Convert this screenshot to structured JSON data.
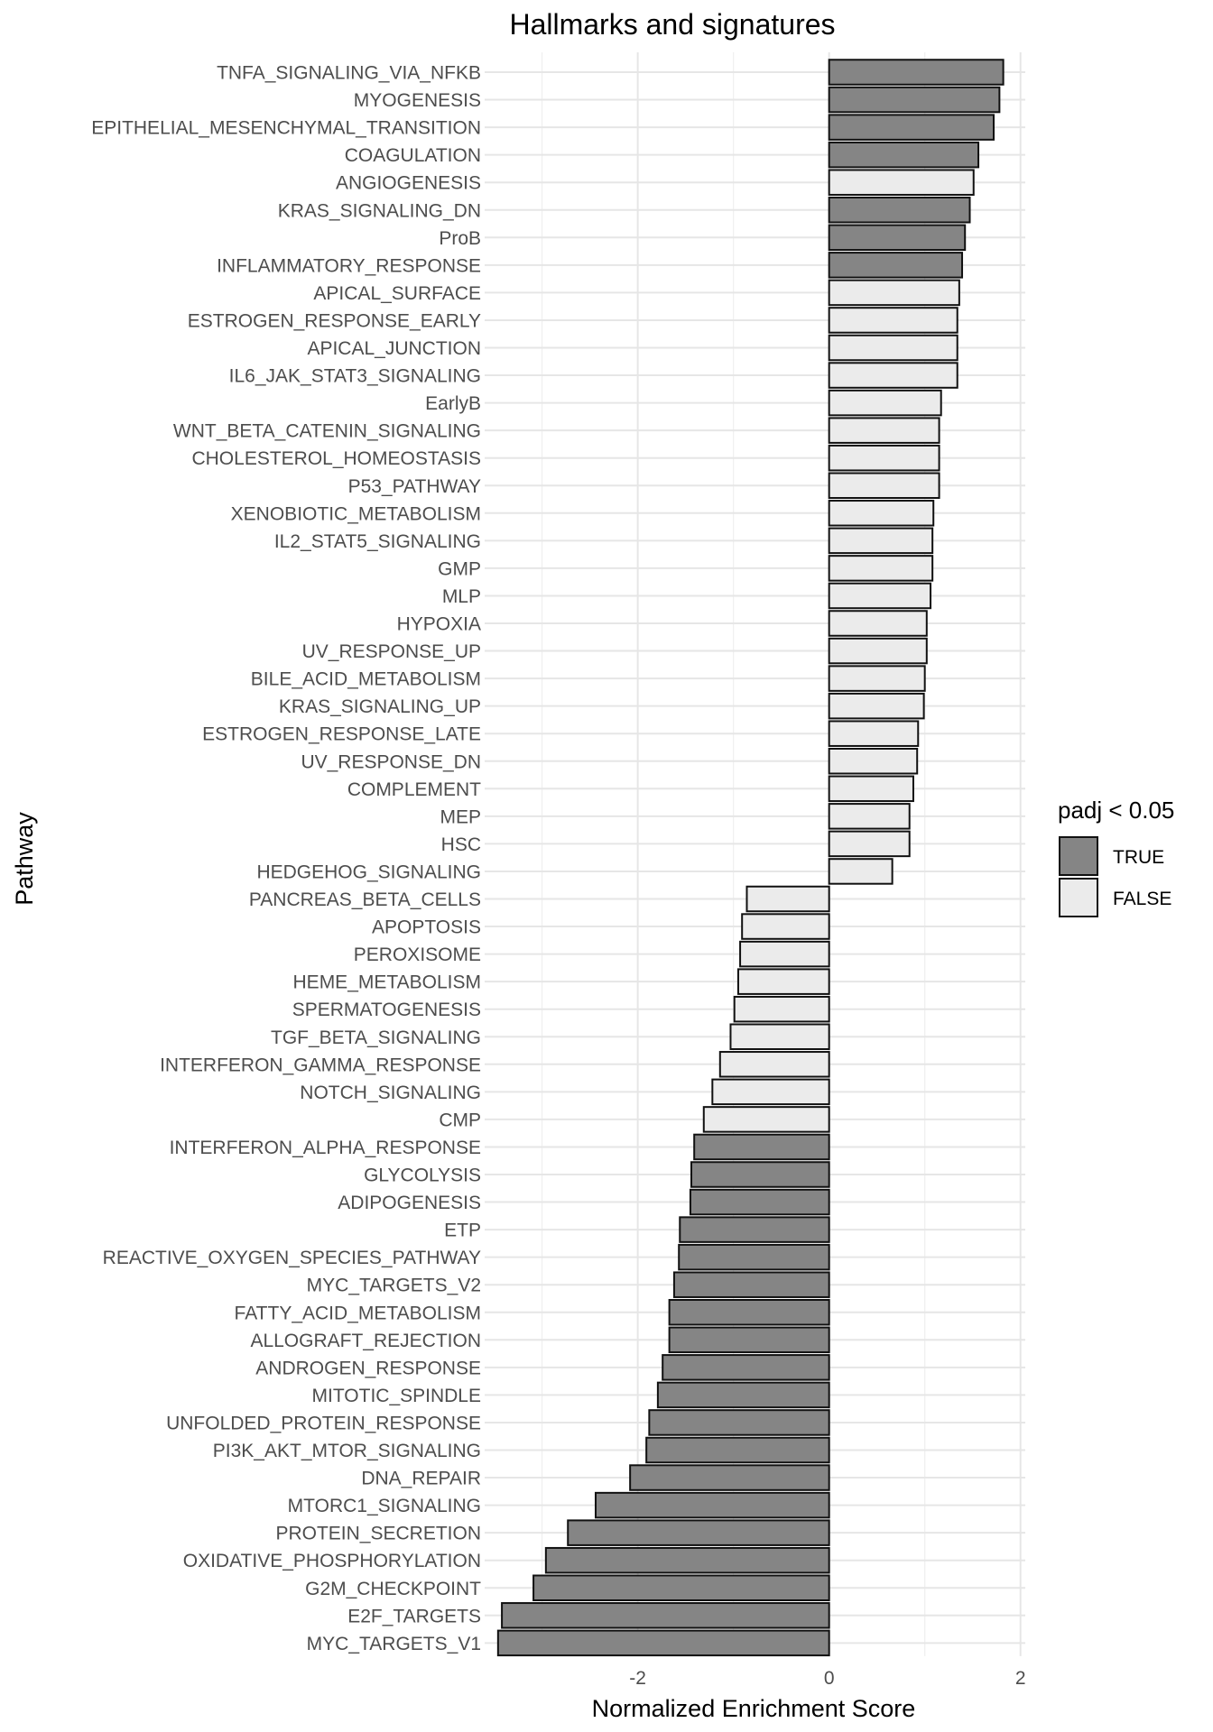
{
  "chart_data": {
    "type": "bar",
    "orientation": "horizontal",
    "title": "Hallmarks and signatures",
    "xlabel": "Normalized Enrichment Score",
    "ylabel": "Pathway",
    "xlim": [
      -3.6,
      2.05
    ],
    "xticks": [
      -2,
      0,
      2
    ],
    "xtick_labels": [
      "-2",
      "0",
      "2"
    ],
    "grid": true,
    "legend": {
      "title": "padj < 0.05",
      "position": "right",
      "entries": [
        {
          "label": "TRUE",
          "color": "#858585"
        },
        {
          "label": "FALSE",
          "color": "#ebebeb"
        }
      ]
    },
    "bars": [
      {
        "pathway": "TNFA_SIGNALING_VIA_NFKB",
        "nes": 1.82,
        "padj_lt_005": "TRUE"
      },
      {
        "pathway": "MYOGENESIS",
        "nes": 1.78,
        "padj_lt_005": "TRUE"
      },
      {
        "pathway": "EPITHELIAL_MESENCHYMAL_TRANSITION",
        "nes": 1.72,
        "padj_lt_005": "TRUE"
      },
      {
        "pathway": "COAGULATION",
        "nes": 1.56,
        "padj_lt_005": "TRUE"
      },
      {
        "pathway": "ANGIOGENESIS",
        "nes": 1.51,
        "padj_lt_005": "FALSE"
      },
      {
        "pathway": "KRAS_SIGNALING_DN",
        "nes": 1.47,
        "padj_lt_005": "TRUE"
      },
      {
        "pathway": "ProB",
        "nes": 1.42,
        "padj_lt_005": "TRUE"
      },
      {
        "pathway": "INFLAMMATORY_RESPONSE",
        "nes": 1.39,
        "padj_lt_005": "TRUE"
      },
      {
        "pathway": "APICAL_SURFACE",
        "nes": 1.36,
        "padj_lt_005": "FALSE"
      },
      {
        "pathway": "ESTROGEN_RESPONSE_EARLY",
        "nes": 1.34,
        "padj_lt_005": "FALSE"
      },
      {
        "pathway": "APICAL_JUNCTION",
        "nes": 1.34,
        "padj_lt_005": "FALSE"
      },
      {
        "pathway": "IL6_JAK_STAT3_SIGNALING",
        "nes": 1.34,
        "padj_lt_005": "FALSE"
      },
      {
        "pathway": "EarlyB",
        "nes": 1.17,
        "padj_lt_005": "FALSE"
      },
      {
        "pathway": "WNT_BETA_CATENIN_SIGNALING",
        "nes": 1.15,
        "padj_lt_005": "FALSE"
      },
      {
        "pathway": "CHOLESTEROL_HOMEOSTASIS",
        "nes": 1.15,
        "padj_lt_005": "FALSE"
      },
      {
        "pathway": "P53_PATHWAY",
        "nes": 1.15,
        "padj_lt_005": "FALSE"
      },
      {
        "pathway": "XENOBIOTIC_METABOLISM",
        "nes": 1.09,
        "padj_lt_005": "FALSE"
      },
      {
        "pathway": "IL2_STAT5_SIGNALING",
        "nes": 1.08,
        "padj_lt_005": "FALSE"
      },
      {
        "pathway": "GMP",
        "nes": 1.08,
        "padj_lt_005": "FALSE"
      },
      {
        "pathway": "MLP",
        "nes": 1.06,
        "padj_lt_005": "FALSE"
      },
      {
        "pathway": "HYPOXIA",
        "nes": 1.02,
        "padj_lt_005": "FALSE"
      },
      {
        "pathway": "UV_RESPONSE_UP",
        "nes": 1.02,
        "padj_lt_005": "FALSE"
      },
      {
        "pathway": "BILE_ACID_METABOLISM",
        "nes": 1.0,
        "padj_lt_005": "FALSE"
      },
      {
        "pathway": "KRAS_SIGNALING_UP",
        "nes": 0.99,
        "padj_lt_005": "FALSE"
      },
      {
        "pathway": "ESTROGEN_RESPONSE_LATE",
        "nes": 0.93,
        "padj_lt_005": "FALSE"
      },
      {
        "pathway": "UV_RESPONSE_DN",
        "nes": 0.92,
        "padj_lt_005": "FALSE"
      },
      {
        "pathway": "COMPLEMENT",
        "nes": 0.88,
        "padj_lt_005": "FALSE"
      },
      {
        "pathway": "MEP",
        "nes": 0.84,
        "padj_lt_005": "FALSE"
      },
      {
        "pathway": "HSC",
        "nes": 0.84,
        "padj_lt_005": "FALSE"
      },
      {
        "pathway": "HEDGEHOG_SIGNALING",
        "nes": 0.66,
        "padj_lt_005": "FALSE"
      },
      {
        "pathway": "PANCREAS_BETA_CELLS",
        "nes": -0.86,
        "padj_lt_005": "FALSE"
      },
      {
        "pathway": "APOPTOSIS",
        "nes": -0.91,
        "padj_lt_005": "FALSE"
      },
      {
        "pathway": "PEROXISOME",
        "nes": -0.93,
        "padj_lt_005": "FALSE"
      },
      {
        "pathway": "HEME_METABOLISM",
        "nes": -0.95,
        "padj_lt_005": "FALSE"
      },
      {
        "pathway": "SPERMATOGENESIS",
        "nes": -0.99,
        "padj_lt_005": "FALSE"
      },
      {
        "pathway": "TGF_BETA_SIGNALING",
        "nes": -1.03,
        "padj_lt_005": "FALSE"
      },
      {
        "pathway": "INTERFERON_GAMMA_RESPONSE",
        "nes": -1.14,
        "padj_lt_005": "FALSE"
      },
      {
        "pathway": "NOTCH_SIGNALING",
        "nes": -1.22,
        "padj_lt_005": "FALSE"
      },
      {
        "pathway": "CMP",
        "nes": -1.31,
        "padj_lt_005": "FALSE"
      },
      {
        "pathway": "INTERFERON_ALPHA_RESPONSE",
        "nes": -1.41,
        "padj_lt_005": "TRUE"
      },
      {
        "pathway": "GLYCOLYSIS",
        "nes": -1.44,
        "padj_lt_005": "TRUE"
      },
      {
        "pathway": "ADIPOGENESIS",
        "nes": -1.45,
        "padj_lt_005": "TRUE"
      },
      {
        "pathway": "ETP",
        "nes": -1.56,
        "padj_lt_005": "TRUE"
      },
      {
        "pathway": "REACTIVE_OXYGEN_SPECIES_PATHWAY",
        "nes": -1.57,
        "padj_lt_005": "TRUE"
      },
      {
        "pathway": "MYC_TARGETS_V2",
        "nes": -1.62,
        "padj_lt_005": "TRUE"
      },
      {
        "pathway": "FATTY_ACID_METABOLISM",
        "nes": -1.67,
        "padj_lt_005": "TRUE"
      },
      {
        "pathway": "ALLOGRAFT_REJECTION",
        "nes": -1.67,
        "padj_lt_005": "TRUE"
      },
      {
        "pathway": "ANDROGEN_RESPONSE",
        "nes": -1.74,
        "padj_lt_005": "TRUE"
      },
      {
        "pathway": "MITOTIC_SPINDLE",
        "nes": -1.79,
        "padj_lt_005": "TRUE"
      },
      {
        "pathway": "UNFOLDED_PROTEIN_RESPONSE",
        "nes": -1.88,
        "padj_lt_005": "TRUE"
      },
      {
        "pathway": "PI3K_AKT_MTOR_SIGNALING",
        "nes": -1.91,
        "padj_lt_005": "TRUE"
      },
      {
        "pathway": "DNA_REPAIR",
        "nes": -2.08,
        "padj_lt_005": "TRUE"
      },
      {
        "pathway": "MTORC1_SIGNALING",
        "nes": -2.44,
        "padj_lt_005": "TRUE"
      },
      {
        "pathway": "PROTEIN_SECRETION",
        "nes": -2.73,
        "padj_lt_005": "TRUE"
      },
      {
        "pathway": "OXIDATIVE_PHOSPHORYLATION",
        "nes": -2.96,
        "padj_lt_005": "TRUE"
      },
      {
        "pathway": "G2M_CHECKPOINT",
        "nes": -3.09,
        "padj_lt_005": "TRUE"
      },
      {
        "pathway": "E2F_TARGETS",
        "nes": -3.42,
        "padj_lt_005": "TRUE"
      },
      {
        "pathway": "MYC_TARGETS_V1",
        "nes": -3.46,
        "padj_lt_005": "TRUE"
      }
    ]
  }
}
